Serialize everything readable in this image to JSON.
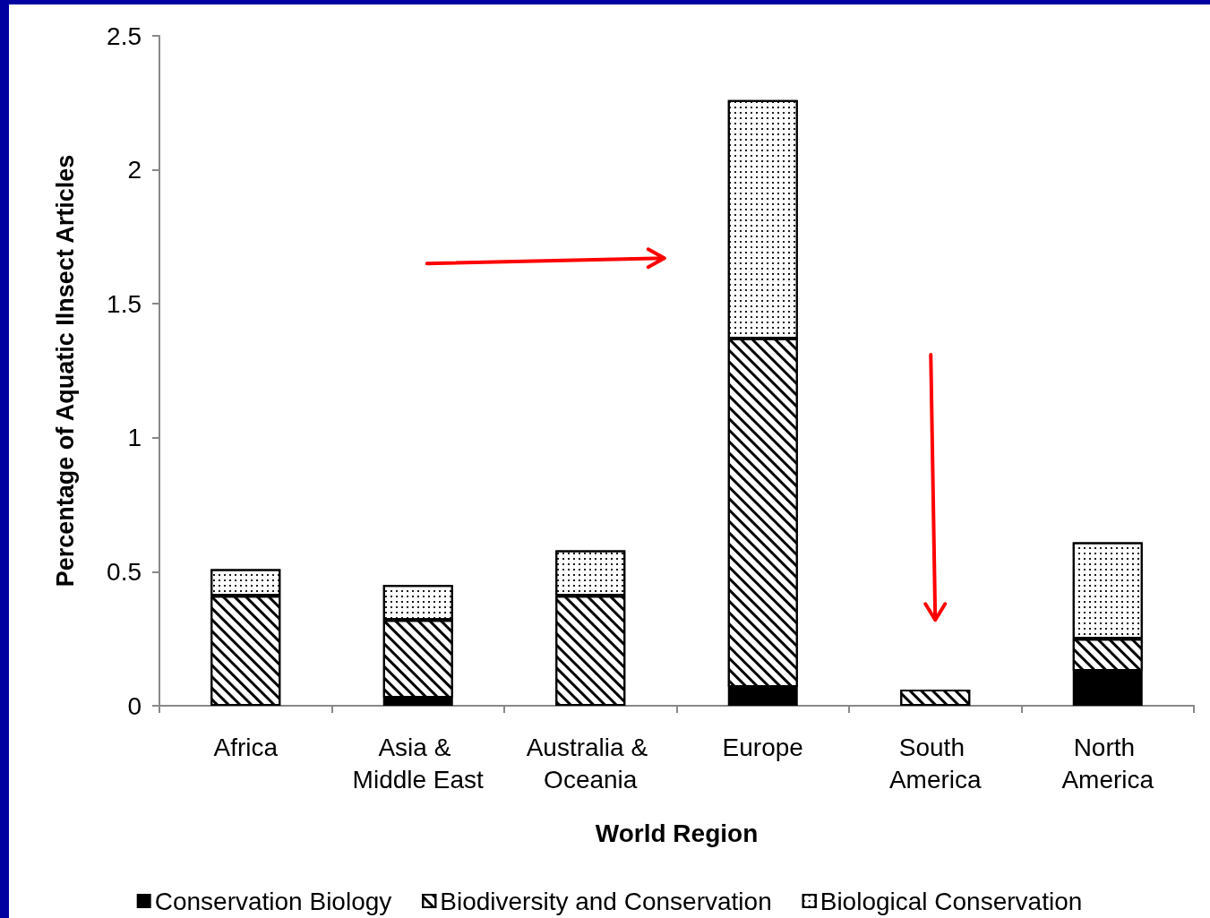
{
  "chart_data": {
    "type": "bar",
    "stacked": true,
    "xlabel": "World Region",
    "ylabel": "Percentage of Aquatic Ilnsect Articles",
    "categories": [
      "Africa",
      "Asia & Middle East",
      "Australia & Oceania",
      "Europe",
      "South America",
      "North America"
    ],
    "series": [
      {
        "name": "Conservation Biology",
        "color": "#000000",
        "values": [
          0,
          0.03,
          0,
          0.07,
          0,
          0.13
        ]
      },
      {
        "name": "Biodiversity and Conservation",
        "color": "#ffffff",
        "values": [
          0.41,
          0.29,
          0.41,
          1.3,
          0.06,
          0.12
        ]
      },
      {
        "name": "Biological Conservation",
        "color": "#ffffff",
        "values": [
          0.1,
          0.13,
          0.17,
          0.89,
          0,
          0.36
        ]
      }
    ],
    "ylim": [
      0,
      2.5
    ],
    "yticks": [
      0,
      0.5,
      1,
      1.5,
      2,
      2.5
    ],
    "grid": false,
    "legend": "bottom"
  }
}
